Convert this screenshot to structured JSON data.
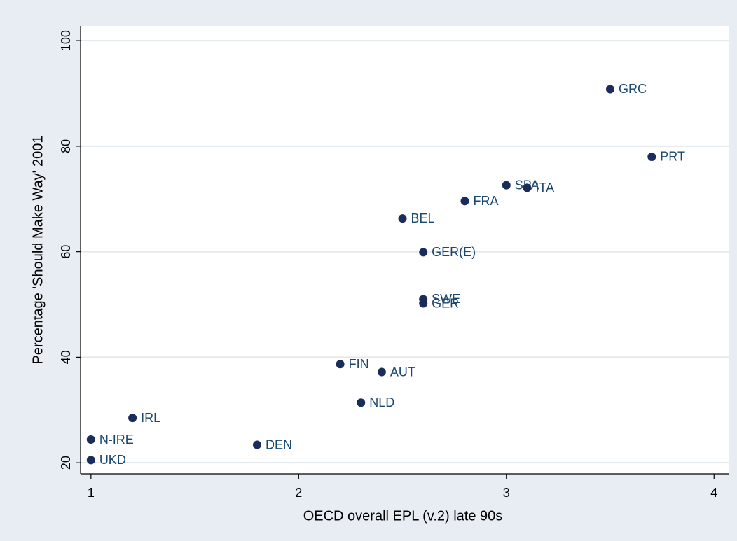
{
  "chart_data": {
    "type": "scatter",
    "x_label": "OECD overall EPL (v.2) late 90s",
    "y_label": "Percentage 'Should Make Way' 2001",
    "labels": [
      "GRC",
      "PRT",
      "SPA",
      "ITA",
      "FRA",
      "BEL",
      "GER(E)",
      "SWE",
      "GER",
      "FIN",
      "AUT",
      "NLD",
      "IRL",
      "N-IRE",
      "UKD",
      "DEN"
    ],
    "x": [
      3.5,
      3.7,
      3.0,
      3.1,
      2.8,
      2.5,
      2.6,
      2.6,
      2.6,
      2.2,
      2.4,
      2.3,
      1.2,
      1.0,
      1.0,
      1.8
    ],
    "values": [
      90.8,
      78,
      72.6,
      72.1,
      69.6,
      66.3,
      59.9,
      51,
      50.2,
      38.7,
      37.2,
      31.4,
      28.5,
      24.4,
      20.5,
      23.4
    ],
    "color": "#1a2d5a",
    "xlim": [
      0.95,
      4.07
    ],
    "ylim": [
      17.9,
      102.8
    ],
    "xticks": [
      1,
      2,
      3,
      4
    ],
    "yticks": [
      20,
      40,
      60,
      80,
      100
    ],
    "grid": true
  }
}
